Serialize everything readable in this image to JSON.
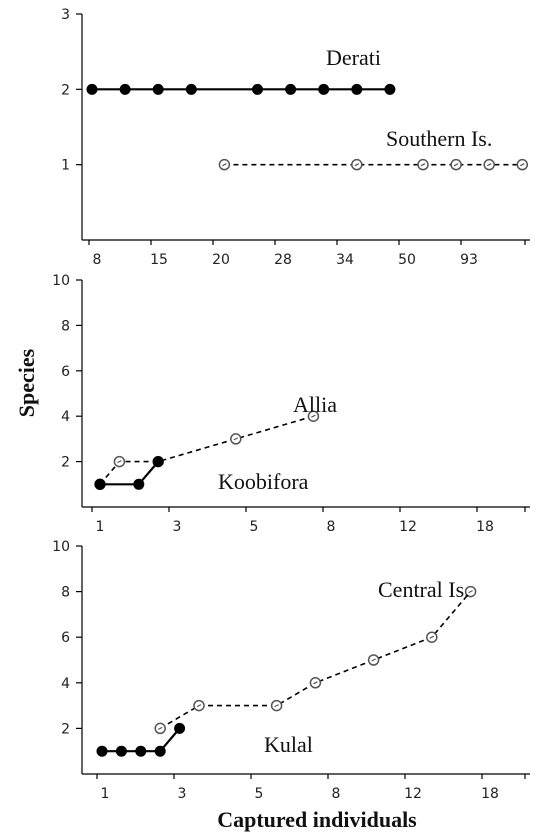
{
  "chart_data": [
    {
      "type": "line",
      "title": "",
      "xlabel": "",
      "ylabel": "",
      "categories": [
        "8",
        "15",
        "20",
        "28",
        "34",
        "50",
        "93"
      ],
      "ylim": [
        0,
        3
      ],
      "yticks": [
        1,
        2,
        3
      ],
      "grid": false,
      "series": [
        {
          "name": "Derati",
          "style": "solid-filled",
          "points": [
            [
              1,
              2
            ],
            [
              2,
              2
            ],
            [
              3,
              2
            ],
            [
              4,
              2
            ],
            [
              6,
              2
            ],
            [
              7,
              2
            ],
            [
              8,
              2
            ],
            [
              9,
              2
            ],
            [
              10,
              2
            ]
          ]
        },
        {
          "name": "Southern Is.",
          "style": "dashed-open",
          "points": [
            [
              5,
              1
            ],
            [
              9,
              1
            ],
            [
              11,
              1
            ],
            [
              12,
              1
            ],
            [
              13,
              1
            ],
            [
              14,
              1
            ]
          ]
        }
      ]
    },
    {
      "type": "line",
      "title": "",
      "xlabel": "",
      "ylabel": "Species",
      "categories": [
        "1",
        "3",
        "5",
        "8",
        "12",
        "18"
      ],
      "ylim": [
        0,
        10
      ],
      "yticks": [
        2,
        4,
        6,
        8,
        10
      ],
      "grid": false,
      "series": [
        {
          "name": "Koobifora",
          "style": "solid-filled",
          "points": [
            [
              1,
              1
            ],
            [
              3,
              1
            ],
            [
              4,
              2
            ]
          ]
        },
        {
          "name": "Allia",
          "style": "dashed-open",
          "points": [
            [
              1,
              1
            ],
            [
              2,
              2
            ],
            [
              4,
              2
            ],
            [
              8,
              3
            ],
            [
              12,
              4
            ]
          ]
        }
      ]
    },
    {
      "type": "line",
      "title": "",
      "xlabel": "Captured individuals",
      "ylabel": "",
      "categories": [
        "1",
        "3",
        "5",
        "8",
        "12",
        "18"
      ],
      "ylim": [
        0,
        10
      ],
      "yticks": [
        2,
        4,
        6,
        8,
        10
      ],
      "grid": false,
      "series": [
        {
          "name": "Kulal",
          "style": "solid-filled",
          "points": [
            [
              1,
              1
            ],
            [
              2,
              1
            ],
            [
              3,
              1
            ],
            [
              4,
              1
            ],
            [
              5,
              2
            ]
          ]
        },
        {
          "name": "Central Is.",
          "style": "dashed-open",
          "points": [
            [
              4,
              2
            ],
            [
              6,
              3
            ],
            [
              10,
              3
            ],
            [
              12,
              4
            ],
            [
              15,
              5
            ],
            [
              18,
              6
            ],
            [
              20,
              8
            ]
          ]
        }
      ]
    }
  ]
}
